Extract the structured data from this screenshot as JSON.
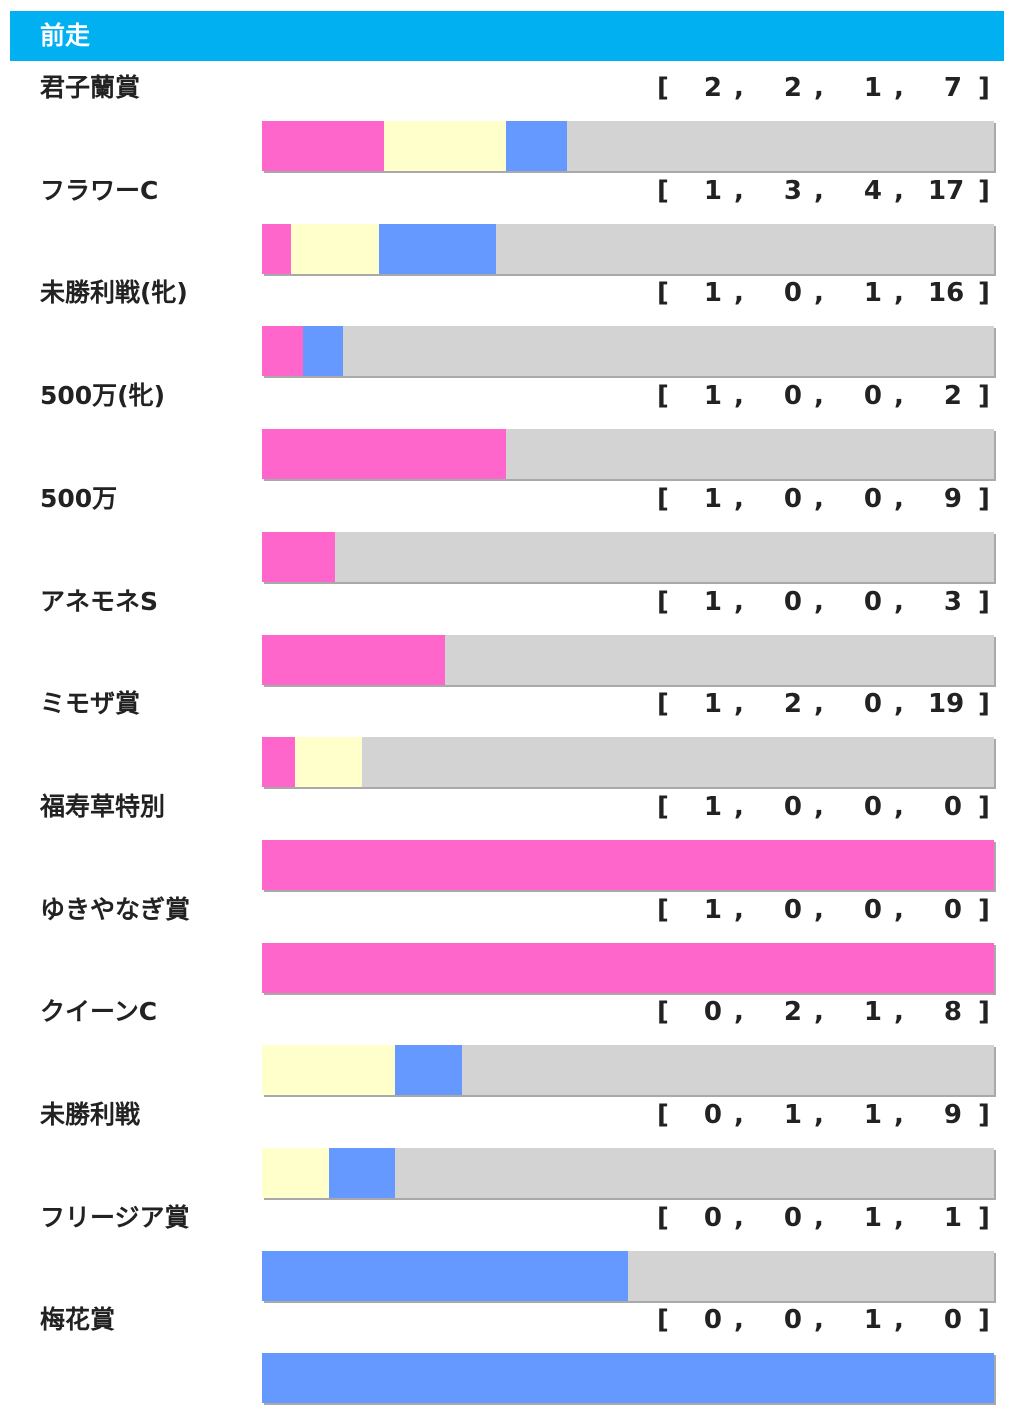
{
  "header": {
    "title": "前走"
  },
  "colors": {
    "first": "#ff66cc",
    "second": "#ffffcc",
    "third": "#6699ff",
    "other": "#d3d3d3",
    "header_bg": "#00b0f0"
  },
  "chart_data": {
    "type": "bar",
    "stacked": true,
    "normalized": true,
    "series": [
      {
        "key": "first",
        "color": "#ff66cc"
      },
      {
        "key": "second",
        "color": "#ffffcc"
      },
      {
        "key": "third",
        "color": "#6699ff"
      },
      {
        "key": "other",
        "color": "#d3d3d3"
      }
    ],
    "rows": [
      {
        "name": "君子蘭賞",
        "values": [
          2,
          2,
          1,
          7
        ]
      },
      {
        "name": "フラワーC",
        "values": [
          1,
          3,
          4,
          17
        ]
      },
      {
        "name": "未勝利戦(牝)",
        "values": [
          1,
          0,
          1,
          16
        ]
      },
      {
        "name": "500万(牝)",
        "values": [
          1,
          0,
          0,
          2
        ]
      },
      {
        "name": "500万",
        "values": [
          1,
          0,
          0,
          9
        ]
      },
      {
        "name": "アネモネS",
        "values": [
          1,
          0,
          0,
          3
        ]
      },
      {
        "name": "ミモザ賞",
        "values": [
          1,
          2,
          0,
          19
        ]
      },
      {
        "name": "福寿草特別",
        "values": [
          1,
          0,
          0,
          0
        ]
      },
      {
        "name": "ゆきやなぎ賞",
        "values": [
          1,
          0,
          0,
          0
        ]
      },
      {
        "name": "クイーンC",
        "values": [
          0,
          2,
          1,
          8
        ]
      },
      {
        "name": "未勝利戦",
        "values": [
          0,
          1,
          1,
          9
        ]
      },
      {
        "name": "フリージア賞",
        "values": [
          0,
          0,
          1,
          1
        ]
      },
      {
        "name": "梅花賞",
        "values": [
          0,
          0,
          1,
          0
        ]
      }
    ]
  }
}
